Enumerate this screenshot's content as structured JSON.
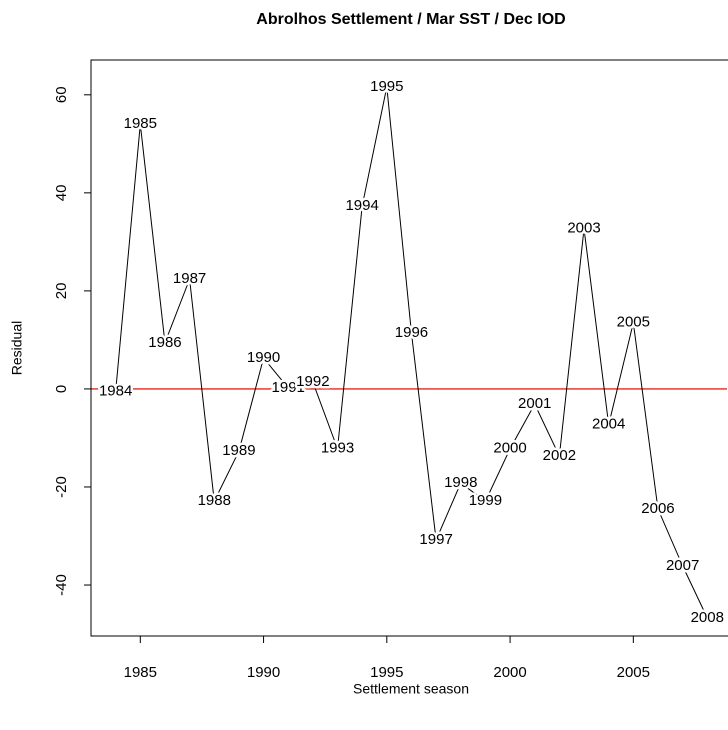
{
  "chart_data": {
    "type": "line",
    "title": "Abrolhos Settlement / Mar SST / Dec IOD",
    "x_label": "Settlement season",
    "y_label": "Residual",
    "x": [
      1984,
      1985,
      1986,
      1987,
      1988,
      1989,
      1990,
      1991,
      1992,
      1993,
      1994,
      1995,
      1996,
      1997,
      1998,
      1999,
      2000,
      2001,
      2002,
      2003,
      2004,
      2005,
      2006,
      2007,
      2008
    ],
    "values": [
      -0.5,
      54,
      9.4,
      22.4,
      -22.9,
      -12.7,
      6.3,
      0.2,
      1.4,
      -12.2,
      37.3,
      61.6,
      11.4,
      -30.8,
      -19.2,
      -22.9,
      -12.2,
      -3.1,
      -13.7,
      32.7,
      -7.3,
      13.5,
      -24.5,
      -36.1,
      -46.7
    ],
    "color": "#000000",
    "hline": {
      "value": 0,
      "color": "#e8261e"
    },
    "xlim": [
      1983,
      2008.8
    ],
    "ylim": [
      -50.4,
      67.1
    ],
    "xticks": [
      1985,
      1990,
      1995,
      2000,
      2005
    ],
    "yticks": [
      -40,
      -20,
      0,
      20,
      40,
      60
    ]
  }
}
